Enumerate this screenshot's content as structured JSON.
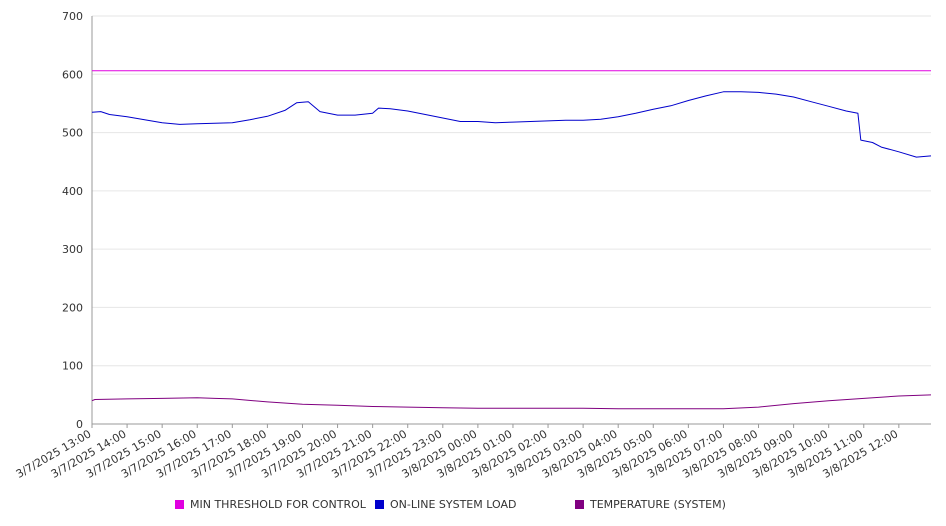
{
  "chart_data": {
    "type": "line",
    "y_ticks": [
      0,
      100,
      200,
      300,
      400,
      500,
      600,
      700
    ],
    "ylim": [
      0,
      700
    ],
    "x_tick_labels": [
      "3/7/2025 13:00",
      "3/7/2025 14:00",
      "3/7/2025 15:00",
      "3/7/2025 16:00",
      "3/7/2025 17:00",
      "3/7/2025 18:00",
      "3/7/2025 19:00",
      "3/7/2025 20:00",
      "3/7/2025 21:00",
      "3/7/2025 22:00",
      "3/7/2025 23:00",
      "3/8/2025 00:00",
      "3/8/2025 01:00",
      "3/8/2025 02:00",
      "3/8/2025 03:00",
      "3/8/2025 04:00",
      "3/8/2025 05:00",
      "3/8/2025 06:00",
      "3/8/2025 07:00",
      "3/8/2025 08:00",
      "3/8/2025 09:00",
      "3/8/2025 10:00",
      "3/8/2025 11:00",
      "3/8/2025 12:00"
    ],
    "xlim": [
      "3/7/2025 13:00",
      "3/8/2025 12:55"
    ],
    "grid": true,
    "legend_position": "bottom",
    "series": [
      {
        "name": "MIN THRESHOLD FOR CONTROL",
        "color": "#e000e0",
        "points": [
          [
            "3/7/2025 13:00",
            606
          ],
          [
            "3/8/2025 12:55",
            606
          ]
        ]
      },
      {
        "name": "ON-LINE SYSTEM LOAD",
        "color": "#0000cc",
        "points": [
          [
            "3/7/2025 13:00",
            535
          ],
          [
            "3/7/2025 13:15",
            536
          ],
          [
            "3/7/2025 13:30",
            531
          ],
          [
            "3/7/2025 14:00",
            527
          ],
          [
            "3/7/2025 14:30",
            522
          ],
          [
            "3/7/2025 15:00",
            517
          ],
          [
            "3/7/2025 15:30",
            514
          ],
          [
            "3/7/2025 16:00",
            515
          ],
          [
            "3/7/2025 16:30",
            516
          ],
          [
            "3/7/2025 17:00",
            517
          ],
          [
            "3/7/2025 17:30",
            522
          ],
          [
            "3/7/2025 18:00",
            528
          ],
          [
            "3/7/2025 18:30",
            538
          ],
          [
            "3/7/2025 18:50",
            551
          ],
          [
            "3/7/2025 19:10",
            553
          ],
          [
            "3/7/2025 19:30",
            536
          ],
          [
            "3/7/2025 20:00",
            530
          ],
          [
            "3/7/2025 20:30",
            530
          ],
          [
            "3/7/2025 21:00",
            533
          ],
          [
            "3/7/2025 21:10",
            542
          ],
          [
            "3/7/2025 21:30",
            541
          ],
          [
            "3/7/2025 22:00",
            537
          ],
          [
            "3/7/2025 22:30",
            531
          ],
          [
            "3/7/2025 23:00",
            525
          ],
          [
            "3/7/2025 23:30",
            519
          ],
          [
            "3/8/2025 00:00",
            519
          ],
          [
            "3/8/2025 00:30",
            517
          ],
          [
            "3/8/2025 01:00",
            518
          ],
          [
            "3/8/2025 01:30",
            519
          ],
          [
            "3/8/2025 02:00",
            520
          ],
          [
            "3/8/2025 02:30",
            521
          ],
          [
            "3/8/2025 03:00",
            521
          ],
          [
            "3/8/2025 03:30",
            523
          ],
          [
            "3/8/2025 04:00",
            527
          ],
          [
            "3/8/2025 04:30",
            533
          ],
          [
            "3/8/2025 05:00",
            540
          ],
          [
            "3/8/2025 05:30",
            546
          ],
          [
            "3/8/2025 06:00",
            555
          ],
          [
            "3/8/2025 06:30",
            563
          ],
          [
            "3/8/2025 07:00",
            570
          ],
          [
            "3/8/2025 07:30",
            570
          ],
          [
            "3/8/2025 08:00",
            569
          ],
          [
            "3/8/2025 08:30",
            566
          ],
          [
            "3/8/2025 09:00",
            561
          ],
          [
            "3/8/2025 09:30",
            553
          ],
          [
            "3/8/2025 10:00",
            545
          ],
          [
            "3/8/2025 10:30",
            537
          ],
          [
            "3/8/2025 10:50",
            533
          ],
          [
            "3/8/2025 10:55",
            487
          ],
          [
            "3/8/2025 11:15",
            483
          ],
          [
            "3/8/2025 11:30",
            475
          ],
          [
            "3/8/2025 12:00",
            467
          ],
          [
            "3/8/2025 12:30",
            458
          ],
          [
            "3/8/2025 12:55",
            460
          ]
        ]
      },
      {
        "name": "TEMPERATURE (SYSTEM)",
        "color": "#800080",
        "points": [
          [
            "3/7/2025 13:00",
            40
          ],
          [
            "3/7/2025 13:05",
            42
          ],
          [
            "3/7/2025 14:00",
            43
          ],
          [
            "3/7/2025 15:00",
            44
          ],
          [
            "3/7/2025 16:00",
            45
          ],
          [
            "3/7/2025 16:30",
            44
          ],
          [
            "3/7/2025 17:00",
            43
          ],
          [
            "3/7/2025 18:00",
            38
          ],
          [
            "3/7/2025 19:00",
            34
          ],
          [
            "3/7/2025 20:00",
            32
          ],
          [
            "3/7/2025 21:00",
            30
          ],
          [
            "3/7/2025 22:00",
            29
          ],
          [
            "3/7/2025 23:00",
            28
          ],
          [
            "3/8/2025 00:00",
            27
          ],
          [
            "3/8/2025 02:00",
            27
          ],
          [
            "3/8/2025 03:00",
            27
          ],
          [
            "3/8/2025 04:00",
            26
          ],
          [
            "3/8/2025 06:00",
            26
          ],
          [
            "3/8/2025 07:00",
            26
          ],
          [
            "3/8/2025 08:00",
            29
          ],
          [
            "3/8/2025 09:00",
            35
          ],
          [
            "3/8/2025 10:00",
            40
          ],
          [
            "3/8/2025 11:00",
            44
          ],
          [
            "3/8/2025 12:00",
            48
          ],
          [
            "3/8/2025 12:55",
            50
          ]
        ]
      }
    ]
  }
}
